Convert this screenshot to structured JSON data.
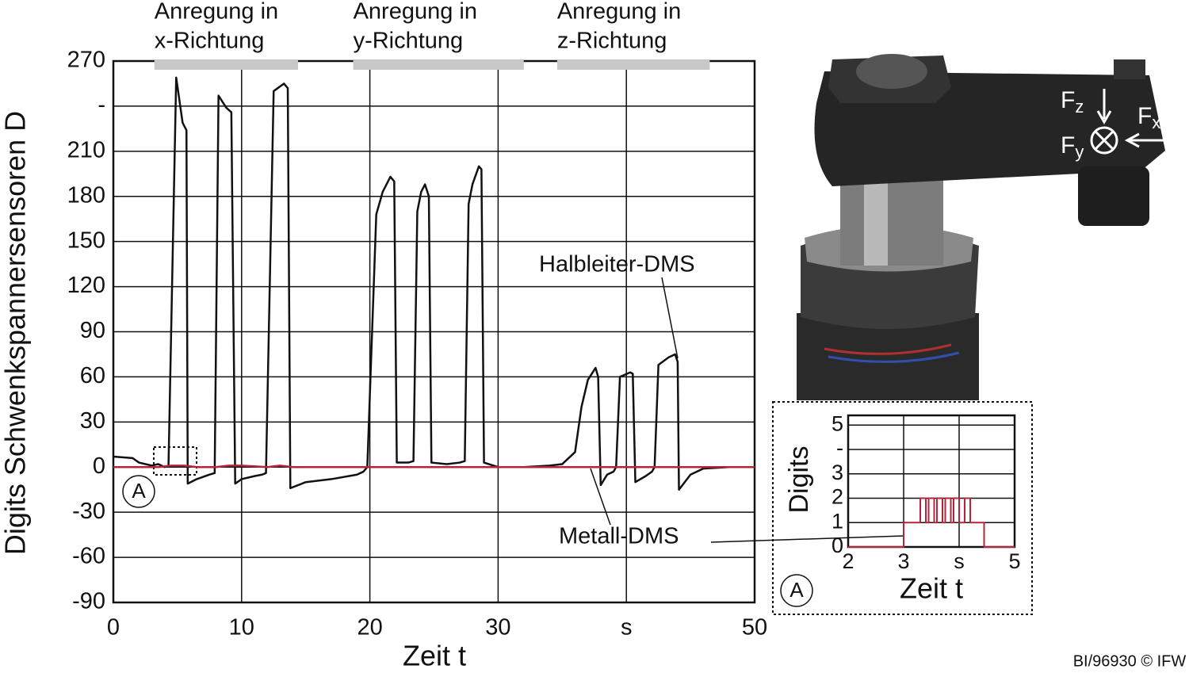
{
  "chart_data": [
    {
      "type": "line",
      "y_label": "Digits Schwenkspannersensoren D",
      "x_label": "Zeit t",
      "xlim": [
        0,
        50
      ],
      "xticks": [
        0,
        10,
        20,
        30,
        {
          "value": 40,
          "label": "s"
        },
        50
      ],
      "ylim": [
        -90,
        270
      ],
      "yticks": [
        -90,
        -60,
        -30,
        0,
        30,
        60,
        90,
        120,
        150,
        180,
        210,
        {
          "value": 240,
          "label": "-"
        },
        270
      ],
      "grid": true,
      "excitations": [
        {
          "lines": [
            "Anregung in",
            "x-Richtung"
          ],
          "range": [
            3.2,
            14.4
          ]
        },
        {
          "lines": [
            "Anregung in",
            "y-Richtung"
          ],
          "range": [
            18.7,
            32.0
          ]
        },
        {
          "lines": [
            "Anregung in",
            "z-Richtung"
          ],
          "range": [
            34.6,
            46.5
          ]
        }
      ],
      "marker": "A",
      "series": [
        {
          "name": "Halbleiter-DMS",
          "color": "#111111",
          "x": [
            0,
            1.5,
            2,
            3,
            3.5,
            4,
            4.3,
            4.9,
            5.4,
            5.7,
            5.8,
            6.5,
            7.5,
            7.9,
            8.2,
            8.8,
            9.2,
            9.5,
            10,
            11,
            11.6,
            11.9,
            12.5,
            13.3,
            13.6,
            13.8,
            15,
            17,
            19,
            19.5,
            19.8,
            20.5,
            21,
            21.6,
            21.9,
            22.1,
            23,
            23.4,
            23.7,
            24.0,
            24.3,
            24.6,
            24.8,
            26,
            27,
            27.4,
            27.7,
            28,
            28.5,
            28.7,
            28.9,
            30,
            32,
            34,
            35,
            36,
            36.5,
            37,
            37.6,
            37.8,
            38.0,
            38.5,
            39,
            39.2,
            39.5,
            40.3,
            40.5,
            40.7,
            41.5,
            42,
            42.2,
            42.5,
            43.3,
            43.8,
            44.0,
            44.1,
            45,
            46,
            48,
            50
          ],
          "values": [
            7,
            6,
            3,
            1,
            2,
            0,
            1,
            259,
            229,
            224,
            -11,
            -8,
            -5,
            -4,
            247,
            239,
            236,
            -11,
            -8,
            -6,
            -5,
            -4,
            250,
            255,
            252,
            -14,
            -10,
            -8,
            -5,
            -3,
            0,
            168,
            183,
            193,
            190,
            3,
            3,
            4,
            170,
            183,
            188,
            180,
            3,
            2,
            3,
            4,
            175,
            188,
            200,
            198,
            3,
            0,
            0,
            1,
            2,
            10,
            40,
            58,
            66,
            60,
            -12,
            -5,
            -3,
            0,
            60,
            63,
            62,
            -10,
            -6,
            -3,
            0,
            68,
            73,
            75,
            70,
            -15,
            -5,
            -1,
            0,
            0
          ]
        },
        {
          "name": "Metall-DMS",
          "color": "#b5243a",
          "x": [
            0,
            3.5,
            4.5,
            5.5,
            6.5,
            8,
            9,
            10,
            12,
            13,
            14,
            50
          ],
          "values": [
            0,
            0,
            1,
            1,
            0,
            0,
            1,
            1,
            0,
            1,
            0,
            0
          ]
        }
      ]
    },
    {
      "type": "line",
      "y_label": "Digits",
      "x_label": "Zeit t",
      "xlim": [
        2,
        5
      ],
      "xticks": [
        2,
        3,
        {
          "value": 4,
          "label": "s"
        },
        5
      ],
      "ylim": [
        0,
        5.4
      ],
      "yticks": [
        0,
        1,
        2,
        3,
        {
          "value": 4,
          "label": "-"
        },
        5
      ],
      "grid": true,
      "marker": "A",
      "series": [
        {
          "name": "Metall-DMS",
          "color": "#b5243a",
          "x": [
            2,
            3,
            3,
            3.3,
            3.3,
            3.4,
            3.4,
            3.45,
            3.45,
            3.55,
            3.55,
            3.6,
            3.6,
            3.7,
            3.7,
            3.75,
            3.75,
            3.85,
            3.85,
            3.9,
            3.9,
            4.0,
            4.0,
            4.1,
            4.1,
            4.2,
            4.2,
            4.45,
            4.45,
            5
          ],
          "values": [
            0,
            0,
            1,
            1,
            2,
            2,
            1,
            1,
            2,
            2,
            1,
            1,
            2,
            2,
            1,
            1,
            2,
            2,
            1,
            1,
            2,
            2,
            1,
            1,
            2,
            2,
            1,
            1,
            0,
            0
          ]
        }
      ]
    }
  ],
  "photo": {
    "forces": [
      {
        "symbol": "F",
        "index": "z"
      },
      {
        "symbol": "F",
        "index": "x"
      },
      {
        "symbol": "F",
        "index": "y"
      }
    ]
  },
  "credit": "BI/96930 © IFW"
}
